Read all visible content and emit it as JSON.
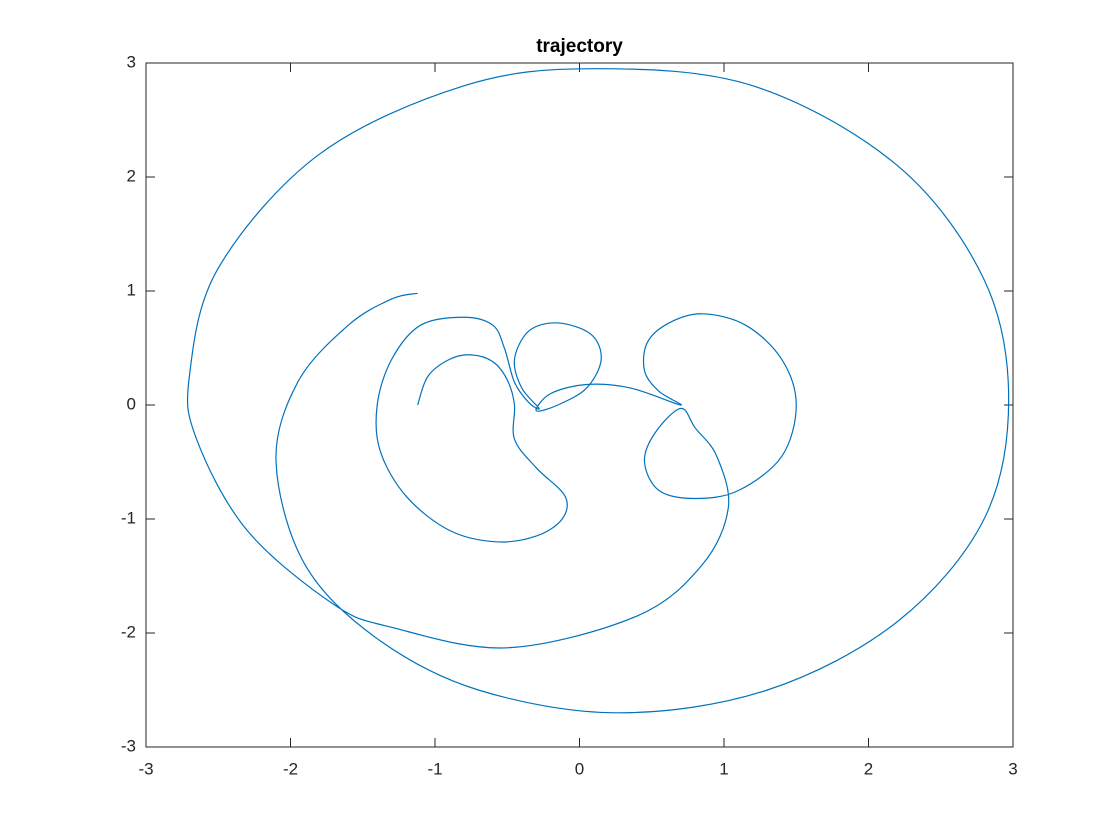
{
  "chart_data": {
    "type": "line",
    "title": "trajectory",
    "color": "#0072bd",
    "xlim": [
      -3,
      3
    ],
    "ylim": [
      -3,
      3
    ],
    "xticks": [
      -3,
      -2,
      -1,
      0,
      1,
      2,
      3
    ],
    "yticks": [
      -3,
      -2,
      -1,
      0,
      1,
      2,
      3
    ],
    "x": [
      -1.12,
      -1.05,
      -0.9,
      -0.75,
      -0.6,
      -0.5,
      -0.45,
      -0.45,
      -0.3,
      -0.1,
      -0.12,
      -0.3,
      -0.58,
      -0.9,
      -1.2,
      -1.38,
      -1.4,
      -1.3,
      -1.1,
      -0.8,
      -0.6,
      -0.52,
      -0.45,
      -0.35,
      -0.28,
      -0.4,
      -0.45,
      -0.35,
      -0.15,
      0.08,
      0.15,
      0.05,
      -0.15,
      -0.3,
      -0.2,
      0.05,
      0.35,
      0.7,
      0.55,
      0.45,
      0.47,
      0.62,
      0.85,
      1.15,
      1.4,
      1.5,
      1.4,
      1.1,
      0.8,
      0.55,
      0.45,
      0.52,
      0.7,
      0.8,
      0.95,
      1.03,
      0.85,
      0.4,
      -0.5,
      -1.3,
      -1.7,
      -2.3,
      -2.65,
      -2.7,
      -2.5,
      -1.8,
      -0.8,
      0.1,
      1.2,
      2.2,
      2.8,
      2.97,
      2.8,
      2.2,
      1.3,
      0.27,
      -0.7,
      -1.4,
      -1.9,
      -2.1,
      -1.95,
      -1.6,
      -1.3,
      -1.12
    ],
    "values": [
      0,
      0.25,
      0.4,
      0.44,
      0.38,
      0.22,
      0,
      -0.3,
      -0.55,
      -0.8,
      -1.0,
      -1.15,
      -1.2,
      -1.1,
      -0.8,
      -0.4,
      0,
      0.4,
      0.7,
      0.77,
      0.7,
      0.5,
      0.2,
      0.02,
      -0.03,
      0.15,
      0.4,
      0.65,
      0.72,
      0.62,
      0.4,
      0.15,
      0,
      -0.05,
      0.1,
      0.18,
      0.15,
      0,
      0.12,
      0.3,
      0.55,
      0.72,
      0.8,
      0.7,
      0.4,
      0,
      -0.45,
      -0.75,
      -0.82,
      -0.75,
      -0.5,
      -0.25,
      -0.03,
      -0.2,
      -0.45,
      -0.9,
      -1.4,
      -1.85,
      -2.13,
      -1.95,
      -1.75,
      -1.1,
      -0.3,
      0.25,
      1.2,
      2.2,
      2.8,
      2.95,
      2.8,
      2.1,
      1.1,
      0.05,
      -1,
      -1.9,
      -2.5,
      -2.7,
      -2.5,
      -2.05,
      -1.4,
      -0.5,
      0.2,
      0.7,
      0.93,
      0.98
    ]
  }
}
